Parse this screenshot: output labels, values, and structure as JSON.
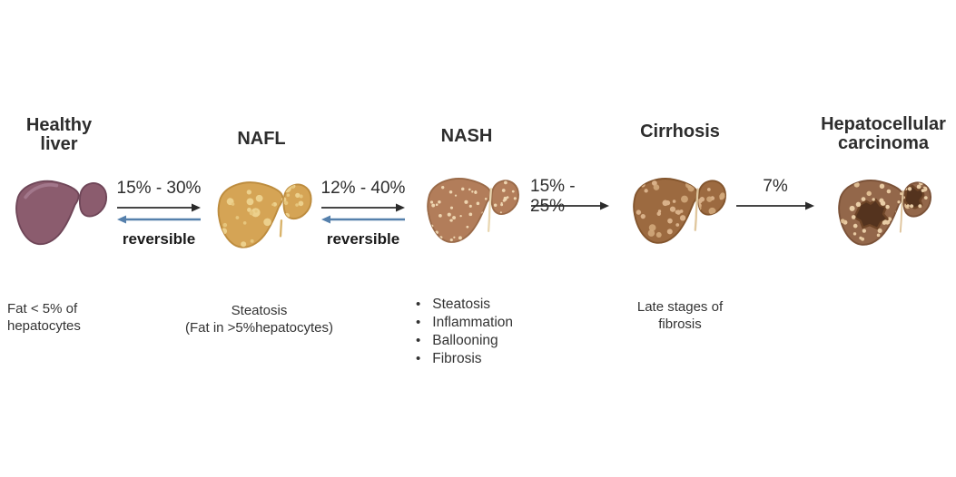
{
  "colors": {
    "text": "#2d2d2d",
    "arrow_black": "#2b2b2b",
    "arrow_blue": "#5580ac",
    "healthy_liver": "#8b5c6e",
    "nafl_liver": "#d5a455",
    "nash_liver": "#b27d5a",
    "cirrhosis_liver": "#9c6a40",
    "hcc_liver": "#93674a"
  },
  "stages": [
    {
      "id": "healthy",
      "title": "Healthy\nliver",
      "description": "Fat < 5% of\nhepatocytes"
    },
    {
      "id": "nafl",
      "title": "NAFL",
      "description": "Steatosis\n(Fat in >5%hepatocytes)"
    },
    {
      "id": "nash",
      "title": "NASH",
      "bullet_char": "•",
      "bullets": [
        "Steatosis",
        "Inflammation",
        "Ballooning",
        "Fibrosis"
      ]
    },
    {
      "id": "cirrhosis",
      "title": "Cirrhosis",
      "description": "Late stages of\nfibrosis"
    },
    {
      "id": "hcc",
      "title": "Hepatocellular\ncarcinoma"
    }
  ],
  "transitions": [
    {
      "rate": "15% - 30%",
      "reversible_label": "reversible"
    },
    {
      "rate": "12% - 40%",
      "reversible_label": "reversible"
    },
    {
      "rate": "15% - 25%"
    },
    {
      "rate": "7%"
    }
  ]
}
